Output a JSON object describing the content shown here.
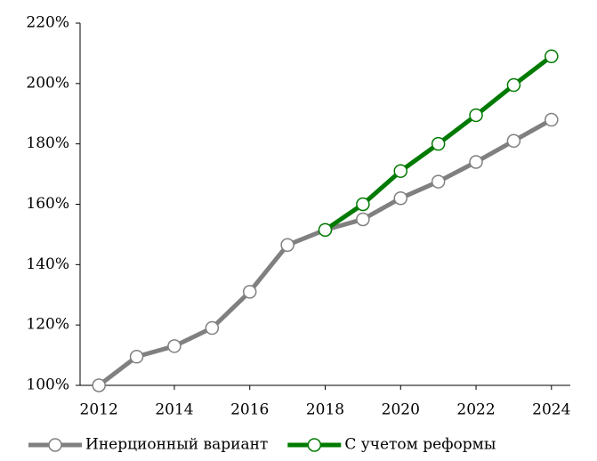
{
  "chart_data": {
    "type": "line",
    "x": [
      2012,
      2013,
      2014,
      2015,
      2016,
      2017,
      2018,
      2019,
      2020,
      2021,
      2022,
      2023,
      2024
    ],
    "series": [
      {
        "name": "Инерционный вариант",
        "color": "#808080",
        "values": [
          100,
          109.5,
          113,
          119,
          131,
          146.5,
          151.5,
          155,
          162,
          167.5,
          174,
          181,
          188
        ]
      },
      {
        "name": "С учетом реформы",
        "color": "#007a00",
        "values": [
          null,
          null,
          null,
          null,
          null,
          null,
          151.5,
          160,
          171,
          180,
          189.5,
          199.5,
          209
        ]
      }
    ],
    "xlim": [
      2011.5,
      2024.5
    ],
    "xticks": [
      2012,
      2014,
      2016,
      2018,
      2020,
      2022,
      2024
    ],
    "ylim": [
      100,
      220
    ],
    "yticks": [
      {
        "value": 100,
        "label": "100%"
      },
      {
        "value": 120,
        "label": "120%"
      },
      {
        "value": 140,
        "label": "140%"
      },
      {
        "value": 160,
        "label": "160%"
      },
      {
        "value": 180,
        "label": "180%"
      },
      {
        "value": 200,
        "label": "200%"
      },
      {
        "value": 220,
        "label": "220%"
      }
    ],
    "legend": "bottom"
  }
}
